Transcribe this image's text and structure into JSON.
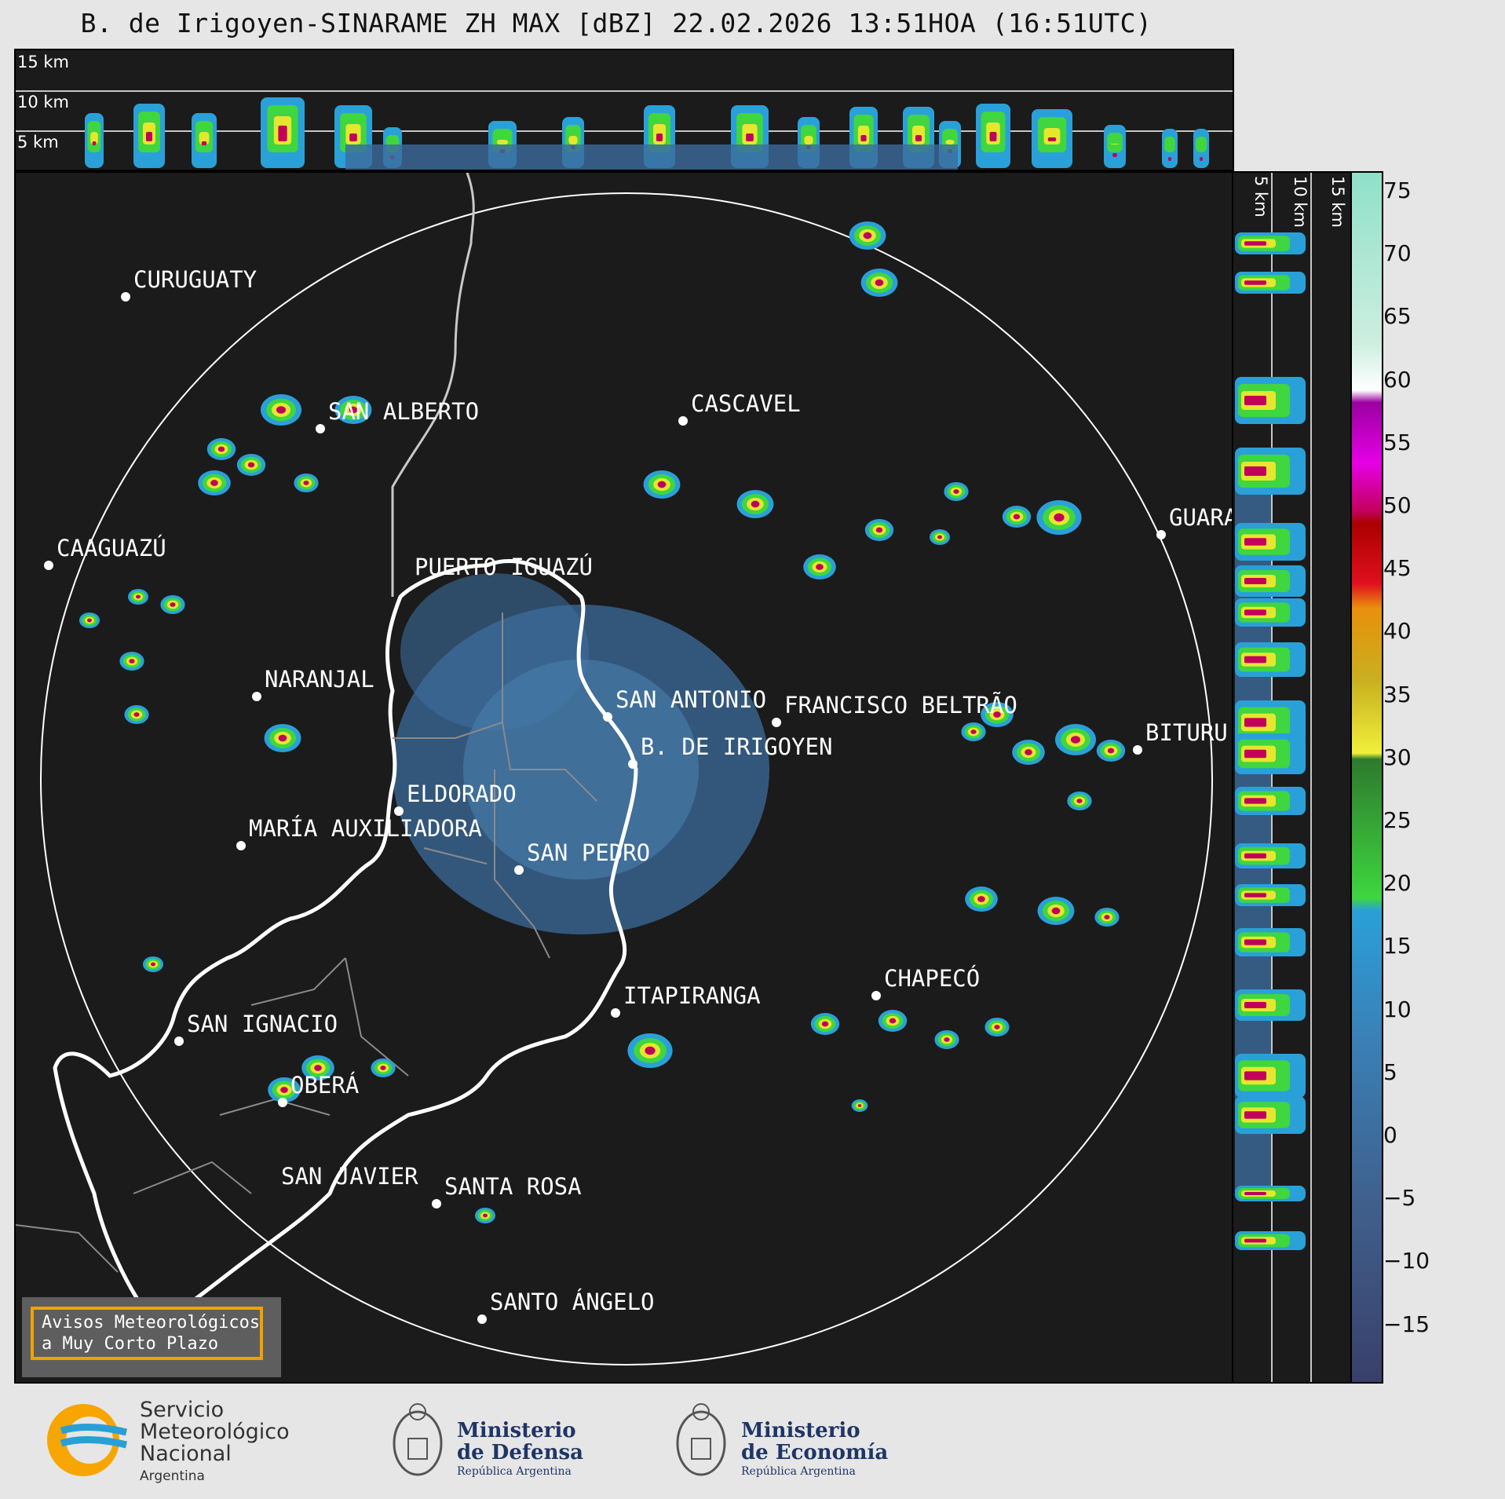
{
  "title": "B. de Irigoyen-SINARAME ZH MAX [dBZ] 22.02.2026 13:51HOA (16:51UTC)",
  "top_panel": {
    "height_labels": [
      "15 km",
      "10 km",
      "5 km"
    ]
  },
  "side_panel": {
    "height_labels": [
      "5 km",
      "10 km",
      "15 km"
    ]
  },
  "cities": [
    {
      "name": "CURUGUATY",
      "id": "curuguaty"
    },
    {
      "name": "SAN ALBERTO",
      "id": "san-alberto"
    },
    {
      "name": "CASCAVEL",
      "id": "cascavel"
    },
    {
      "name": "CAAGUAZÚ",
      "id": "caaguazu"
    },
    {
      "name": "GUARA",
      "id": "guara"
    },
    {
      "name": "PUERTO IGUAZÚ",
      "id": "puerto-iguazu"
    },
    {
      "name": "NARANJAL",
      "id": "naranjal"
    },
    {
      "name": "SAN ANTONIO",
      "id": "san-antonio"
    },
    {
      "name": "FRANCISCO BELTRÃO",
      "id": "francisco-beltrao"
    },
    {
      "name": "BITURU",
      "id": "bituru"
    },
    {
      "name": "B. DE IRIGOYEN",
      "id": "b-de-irigoyen"
    },
    {
      "name": "ELDORADO",
      "id": "eldorado"
    },
    {
      "name": "MARÍA AUXILIADORA",
      "id": "maria-auxiliadora"
    },
    {
      "name": "SAN PEDRO",
      "id": "san-pedro"
    },
    {
      "name": "CHAPECÓ",
      "id": "chapeco"
    },
    {
      "name": "ITAPIRANGA",
      "id": "itapiranga"
    },
    {
      "name": "SAN IGNACIO",
      "id": "san-ignacio"
    },
    {
      "name": "OBERÁ",
      "id": "obera"
    },
    {
      "name": "SAN JAVIER",
      "id": "san-javier"
    },
    {
      "name": "SANTA ROSA",
      "id": "santa-rosa"
    },
    {
      "name": "SANTO ÁNGELO",
      "id": "santo-angelo"
    }
  ],
  "colorbar": {
    "ticks": [
      "75",
      "70",
      "65",
      "60",
      "55",
      "50",
      "45",
      "40",
      "35",
      "30",
      "25",
      "20",
      "15",
      "10",
      "5",
      "0",
      "−5",
      "−10",
      "−15"
    ],
    "unit": "dBZ"
  },
  "warning": {
    "text": "Avisos Meteorológicos\na Muy Corto Plazo"
  },
  "logos": {
    "smn": [
      "Servicio",
      "Meteorológico",
      "Nacional",
      "Argentina"
    ],
    "defensa": {
      "line1": "Ministerio",
      "line2": "de Defensa",
      "line3": "República Argentina"
    },
    "economia": {
      "line1": "Ministerio",
      "line2": "de Economía",
      "line3": "República Argentina"
    }
  }
}
